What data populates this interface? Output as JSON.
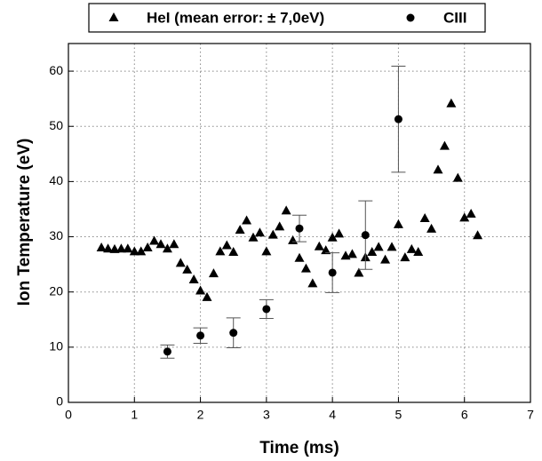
{
  "chart_data": {
    "type": "scatter",
    "xlabel": "Time (ms)",
    "ylabel": "Ion Temperature (eV)",
    "xlim": [
      0,
      7
    ],
    "ylim": [
      0,
      65
    ],
    "xticks": [
      0,
      1,
      2,
      3,
      4,
      5,
      6,
      7
    ],
    "yticks": [
      0,
      10,
      20,
      30,
      40,
      50,
      60
    ],
    "grid": true,
    "series": [
      {
        "name": "HeI (mean error: ± 7,0eV)",
        "marker": "triangle",
        "color": "#000000",
        "x": [
          0.5,
          0.6,
          0.7,
          0.8,
          0.9,
          1.0,
          1.1,
          1.2,
          1.3,
          1.4,
          1.5,
          1.6,
          1.7,
          1.8,
          1.9,
          2.0,
          2.1,
          2.2,
          2.3,
          2.4,
          2.5,
          2.6,
          2.7,
          2.8,
          2.9,
          3.0,
          3.1,
          3.2,
          3.3,
          3.4,
          3.5,
          3.6,
          3.7,
          3.8,
          3.9,
          4.0,
          4.1,
          4.2,
          4.3,
          4.4,
          4.5,
          4.6,
          4.7,
          4.8,
          4.9,
          5.0,
          5.1,
          5.2,
          5.3,
          5.4,
          5.5,
          5.6,
          5.7,
          5.8,
          5.9,
          6.0,
          6.1,
          6.2
        ],
        "values": [
          28,
          27.8,
          27.7,
          27.8,
          27.8,
          27.3,
          27.3,
          28,
          29.2,
          28.6,
          27.8,
          28.6,
          25.2,
          24,
          22.2,
          20.2,
          19,
          23.3,
          27.3,
          28.4,
          27.2,
          31.2,
          32.9,
          29.8,
          30.7,
          27.3,
          30.3,
          31.8,
          34.7,
          29.3,
          26.1,
          24.2,
          21.5,
          28.2,
          27.5,
          29.8,
          30.5,
          26.5,
          26.8,
          23.4,
          26.2,
          27.2,
          28.1,
          25.8,
          28.1,
          32.2,
          26.2,
          27.7,
          27.2,
          33.3,
          31.4,
          42.1,
          46.4,
          54.1,
          40.6,
          33.4,
          34.1,
          30.2
        ]
      },
      {
        "name": "CIII",
        "marker": "circle",
        "color": "#000000",
        "x": [
          1.5,
          2.0,
          2.5,
          3.0,
          3.5,
          4.0,
          4.5,
          5.0
        ],
        "values": [
          9.2,
          12.1,
          12.6,
          16.9,
          31.5,
          23.5,
          30.3,
          51.3
        ],
        "errors": [
          1.2,
          1.4,
          2.7,
          1.7,
          2.4,
          3.6,
          6.2,
          9.6
        ]
      }
    ]
  }
}
